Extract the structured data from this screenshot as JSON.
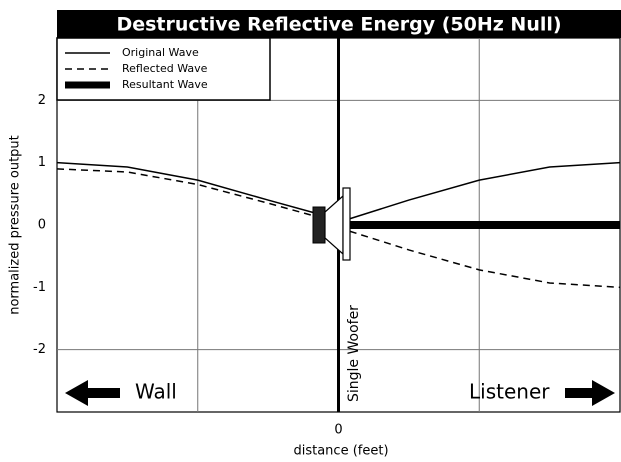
{
  "chart_data": {
    "type": "line",
    "title": "Destructive Reflective Energy (50Hz Null)",
    "x_label": "distance (feet)",
    "y_label": "normalized pressure output",
    "annotations": [
      "Wall",
      "Listener",
      "Single Woofer"
    ],
    "x": [
      -2,
      -1.5,
      -1,
      -0.5,
      -0.18,
      0,
      0.08,
      0.5,
      1,
      1.5,
      2
    ],
    "series": [
      {
        "name": "Original Wave",
        "color": "#000000",
        "dash": false,
        "width": 1.5,
        "values": [
          1,
          0.93,
          0.72,
          0.4,
          0.2,
          null,
          0.1,
          0.4,
          0.72,
          0.93,
          1
        ]
      },
      {
        "name": "Reflected Wave",
        "color": "#000000",
        "dash": true,
        "width": 1.5,
        "values": [
          0.9,
          0.85,
          0.65,
          0.35,
          0.15,
          null,
          -0.1,
          -0.4,
          -0.72,
          -0.93,
          -1
        ]
      },
      {
        "name": "Resultant Wave",
        "color": "#000000",
        "dash": false,
        "width": 8,
        "values": [
          null,
          null,
          null,
          null,
          null,
          null,
          0,
          0,
          0,
          0,
          0
        ]
      }
    ],
    "xlim": [
      -2,
      2
    ],
    "xticks": [
      0
    ],
    "xgrid": [
      -1,
      1
    ],
    "ylim": [
      -3,
      3
    ],
    "yticks": [
      -2,
      -1,
      0,
      1,
      2
    ],
    "ygrid": [
      -2,
      2
    ],
    "legend": "top-left"
  }
}
